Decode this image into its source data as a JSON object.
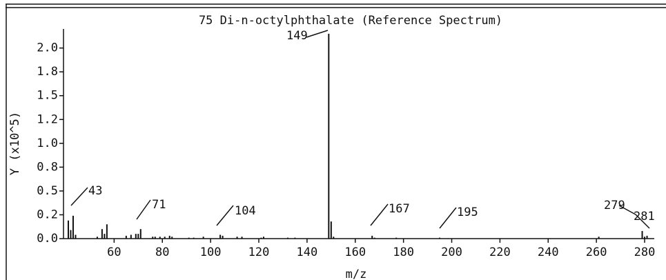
{
  "chart_data": {
    "type": "bar",
    "title": "75 Di-n-octylphthalate (Reference Spectrum)",
    "x_label": "m/z",
    "y_label": "Y (x10^5)",
    "x": [
      41,
      42,
      43,
      44,
      53,
      55,
      56,
      57,
      65,
      67,
      69,
      70,
      71,
      76,
      77,
      79,
      81,
      83,
      84,
      91,
      93,
      97,
      104,
      105,
      111,
      113,
      121,
      122,
      132,
      135,
      149,
      150,
      151,
      167,
      168,
      177,
      195,
      261,
      279,
      280,
      281
    ],
    "values": [
      0.19,
      0.09,
      0.24,
      0.04,
      0.02,
      0.1,
      0.05,
      0.15,
      0.03,
      0.04,
      0.05,
      0.05,
      0.1,
      0.02,
      0.02,
      0.02,
      0.02,
      0.03,
      0.02,
      0.01,
      0.01,
      0.02,
      0.04,
      0.03,
      0.02,
      0.02,
      0.01,
      0.02,
      0.01,
      0.01,
      2.15,
      0.18,
      0.02,
      0.03,
      0.01,
      0.01,
      0.01,
      0.02,
      0.08,
      0.02,
      0.03
    ],
    "color": "#111111",
    "peak_labels": [
      43,
      71,
      104,
      149,
      167,
      195,
      279,
      281
    ],
    "xlim": [
      39,
      284
    ],
    "xticks": [
      60,
      80,
      100,
      120,
      140,
      160,
      180,
      200,
      220,
      240,
      260,
      280
    ],
    "ylim": [
      0,
      2.2
    ],
    "yticks": [
      {
        "value": 0,
        "label": "0.0"
      },
      {
        "value": 0.25,
        "label": "0.2"
      },
      {
        "value": 0.5,
        "label": "0.5"
      },
      {
        "value": 0.75,
        "label": "0.8"
      },
      {
        "value": 1,
        "label": "1.0"
      },
      {
        "value": 1.25,
        "label": "1.2"
      },
      {
        "value": 1.5,
        "label": "1.5"
      },
      {
        "value": 1.75,
        "label": "1.8"
      },
      {
        "value": 2,
        "label": "2.0"
      }
    ]
  }
}
